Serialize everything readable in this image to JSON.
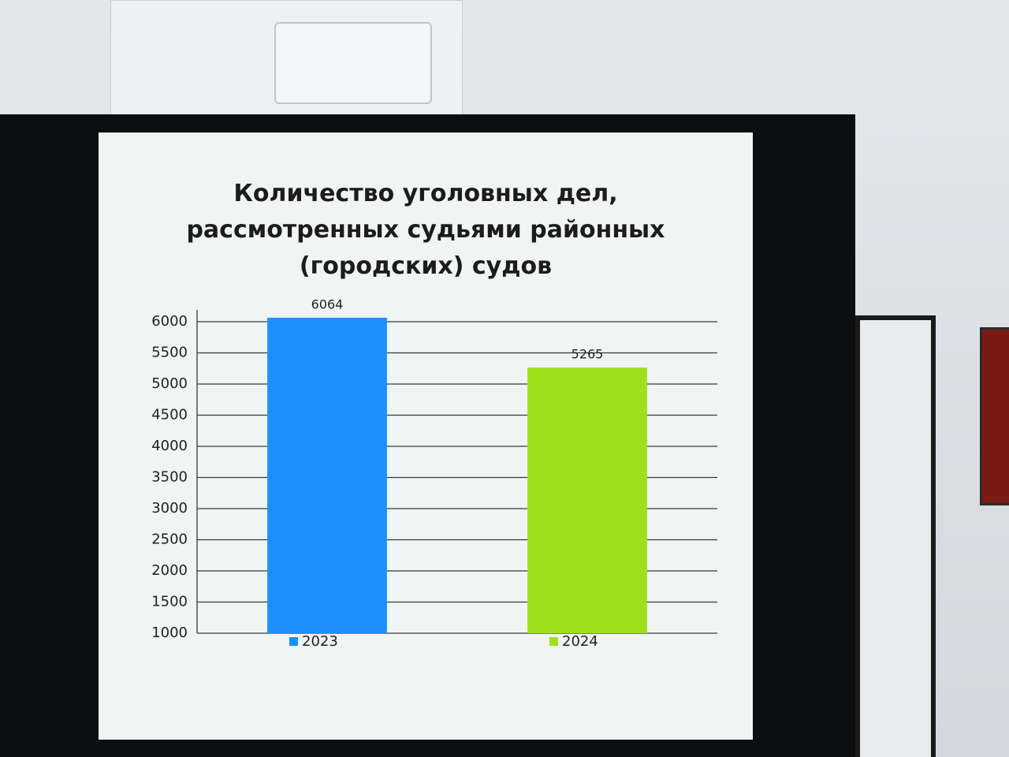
{
  "chart_data": {
    "type": "bar",
    "title": "Количество уголовных дел, рассмотренных судьями районных (городских) судов",
    "categories": [
      "2023",
      "2024"
    ],
    "values": [
      6064,
      5265
    ],
    "colors": [
      "#1e8fff",
      "#9ee01a"
    ],
    "ylim": [
      1000,
      6000
    ],
    "yticks": [
      1000,
      1500,
      2000,
      2500,
      3000,
      3500,
      4000,
      4500,
      5000,
      5500,
      6000
    ],
    "grid": true
  }
}
